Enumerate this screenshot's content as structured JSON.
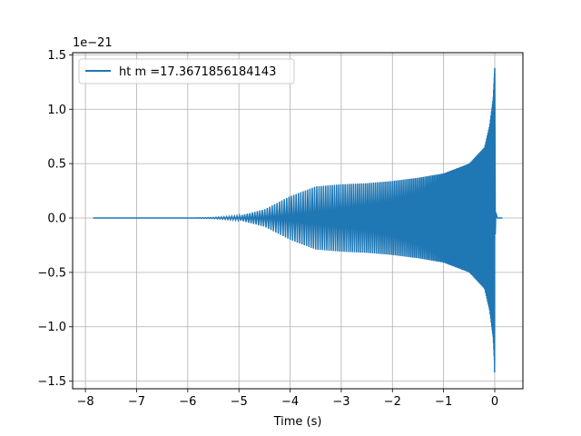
{
  "chart_data": {
    "type": "line",
    "title": "",
    "xlabel": "Time (s)",
    "ylabel": "",
    "y_offset_label": "1e−21",
    "xlim": [
      -8.25,
      0.55
    ],
    "ylim": [
      -1.57,
      1.52
    ],
    "xticks": [
      -8,
      -7,
      -6,
      -5,
      -4,
      -3,
      -2,
      -1,
      0
    ],
    "xtick_labels": [
      "−8",
      "−7",
      "−6",
      "−5",
      "−4",
      "−3",
      "−2",
      "−1",
      "0"
    ],
    "yticks": [
      -1.5,
      -1.0,
      -0.5,
      0.0,
      0.5,
      1.0,
      1.5
    ],
    "ytick_labels": [
      "−1.5",
      "−1.0",
      "−0.5",
      "0.0",
      "0.5",
      "1.0",
      "1.5"
    ],
    "grid": true,
    "legend_position": "top-left",
    "series": [
      {
        "name": "ht m =17.3671856184143",
        "color": "#1f77b4",
        "x_start": -7.85,
        "x_end": 0.15,
        "merger_time": 0.0,
        "envelope": {
          "t": [
            -7.85,
            -6.0,
            -5.5,
            -5.0,
            -4.5,
            -4.0,
            -3.5,
            -3.0,
            -2.5,
            -2.0,
            -1.5,
            -1.0,
            -0.5,
            -0.2,
            -0.1,
            -0.03,
            0.0,
            0.02,
            0.15
          ],
          "amp": [
            0.0,
            0.0,
            0.005,
            0.02,
            0.08,
            0.2,
            0.29,
            0.31,
            0.32,
            0.34,
            0.37,
            0.41,
            0.5,
            0.65,
            0.85,
            1.1,
            1.38,
            0.02,
            0.0
          ]
        },
        "max": 1.38,
        "min": -1.42
      }
    ]
  }
}
